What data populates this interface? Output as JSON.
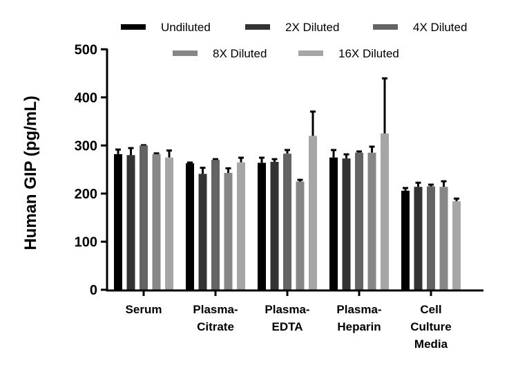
{
  "chart_data": {
    "type": "bar",
    "title": "",
    "xlabel": "",
    "ylabel": "Human GIP (pg/mL)",
    "ylim": [
      0,
      500
    ],
    "yticks": [
      0,
      100,
      200,
      300,
      400,
      500
    ],
    "grid": false,
    "legend_position": "top",
    "categories": [
      [
        "Serum"
      ],
      [
        "Plasma-",
        "Citrate"
      ],
      [
        "Plasma-",
        "EDTA"
      ],
      [
        "Plasma-",
        "Heparin"
      ],
      [
        "Cell",
        "Culture",
        "Media"
      ]
    ],
    "series": [
      {
        "name": "Undiluted",
        "color": "#000000",
        "values": [
          282,
          263,
          264,
          275,
          206
        ],
        "error_upper": [
          293,
          266,
          276,
          292,
          213
        ]
      },
      {
        "name": "2X Diluted",
        "color": "#333333",
        "values": [
          280,
          241,
          266,
          273,
          214
        ],
        "error_upper": [
          296,
          255,
          273,
          283,
          224
        ]
      },
      {
        "name": "4X Diluted",
        "color": "#646464",
        "values": [
          300,
          270,
          283,
          285,
          215
        ],
        "error_upper": [
          302,
          273,
          292,
          289,
          220
        ]
      },
      {
        "name": "8X Diluted",
        "color": "#878787",
        "values": [
          282,
          243,
          225,
          285,
          214
        ],
        "error_upper": [
          285,
          254,
          230,
          299,
          227
        ]
      },
      {
        "name": "16X Diluted",
        "color": "#a6a6a9",
        "values": [
          275,
          265,
          320,
          325,
          184
        ],
        "error_upper": [
          291,
          276,
          372,
          441,
          191
        ]
      }
    ]
  }
}
